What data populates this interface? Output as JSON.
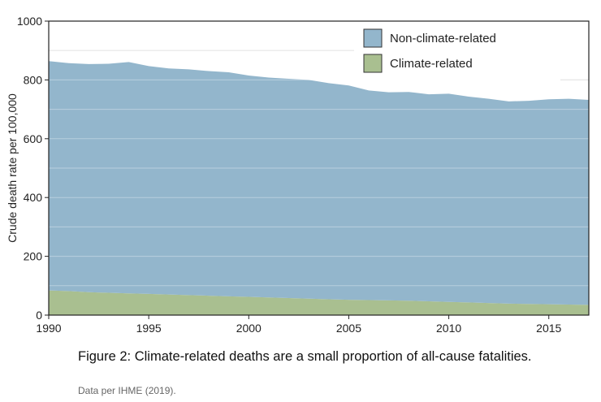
{
  "chart_data": {
    "type": "area",
    "stacked": true,
    "x": [
      1990,
      1991,
      1992,
      1993,
      1994,
      1995,
      1996,
      1997,
      1998,
      1999,
      2000,
      2001,
      2002,
      2003,
      2004,
      2005,
      2006,
      2007,
      2008,
      2009,
      2010,
      2011,
      2012,
      2013,
      2014,
      2015,
      2016,
      2017
    ],
    "series": [
      {
        "name": "Climate-related",
        "color": "#a9bf90",
        "values": [
          84,
          82,
          78,
          76,
          74,
          72,
          70,
          68,
          66,
          64,
          62,
          60,
          58,
          56,
          54,
          52,
          51,
          50,
          49,
          47,
          45,
          43,
          41,
          39,
          38,
          37,
          36,
          35
        ]
      },
      {
        "name": "Non-climate-related",
        "color": "#93b6cc",
        "values": [
          780,
          775,
          776,
          779,
          787,
          775,
          769,
          768,
          764,
          762,
          753,
          748,
          746,
          744,
          735,
          729,
          713,
          708,
          710,
          704,
          708,
          700,
          695,
          688,
          691,
          697,
          700,
          697
        ]
      }
    ],
    "xlim": [
      1990,
      2017
    ],
    "ylim": [
      0,
      1000
    ],
    "xticks": [
      "1990",
      "1995",
      "2000",
      "2005",
      "2010",
      "2015"
    ],
    "yticks": [
      "0",
      "200",
      "400",
      "600",
      "800",
      "1000"
    ],
    "ylabel": "Crude death rate per 100,000",
    "legend_position": "top-right",
    "grid": true
  },
  "caption": "Figure 2: Climate-related deaths are a small proportion of all-cause fatalities.",
  "source": "Data per IHME (2019)."
}
